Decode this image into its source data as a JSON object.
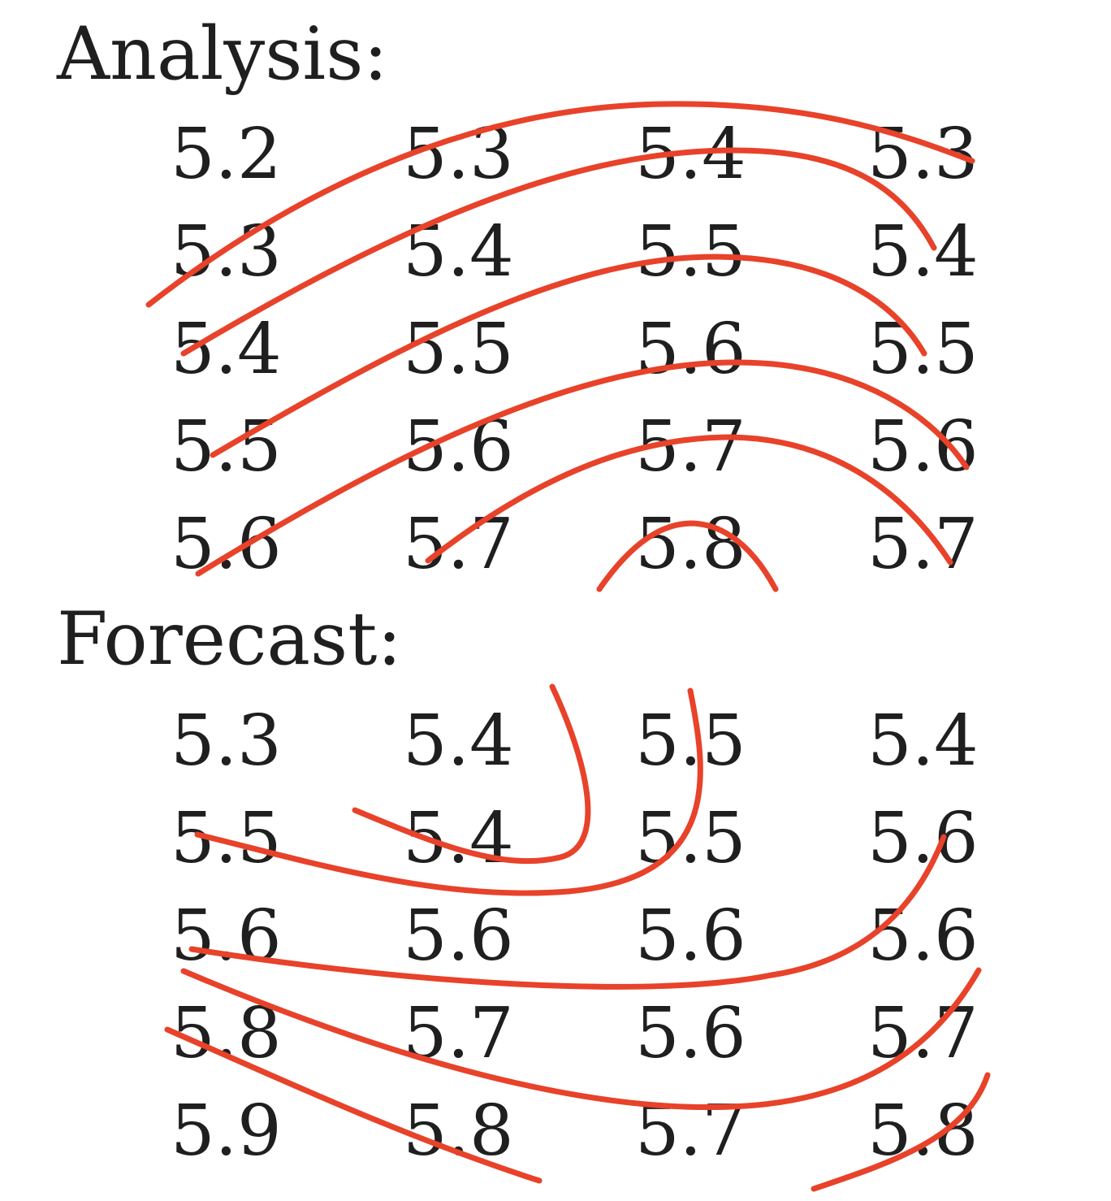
{
  "colors": {
    "text": "#1f1f1f",
    "stroke": "#e8422a"
  },
  "analysis": {
    "title": "Analysis:",
    "rows": [
      [
        "5.2",
        "5.3",
        "5.4",
        "5.3"
      ],
      [
        "5.3",
        "5.4",
        "5.5",
        "5.4"
      ],
      [
        "5.4",
        "5.5",
        "5.6",
        "5.5"
      ],
      [
        "5.5",
        "5.6",
        "5.7",
        "5.6"
      ],
      [
        "5.6",
        "5.7",
        "5.8",
        "5.7"
      ]
    ]
  },
  "forecast": {
    "title": "Forecast:",
    "rows": [
      [
        "5.3",
        "5.4",
        "5.5",
        "5.4"
      ],
      [
        "5.5",
        "5.4",
        "5.5",
        "5.6"
      ],
      [
        "5.6",
        "5.6",
        "5.6",
        "5.6"
      ],
      [
        "5.8",
        "5.7",
        "5.6",
        "5.7"
      ],
      [
        "5.9",
        "5.8",
        "5.7",
        "5.8"
      ]
    ]
  }
}
